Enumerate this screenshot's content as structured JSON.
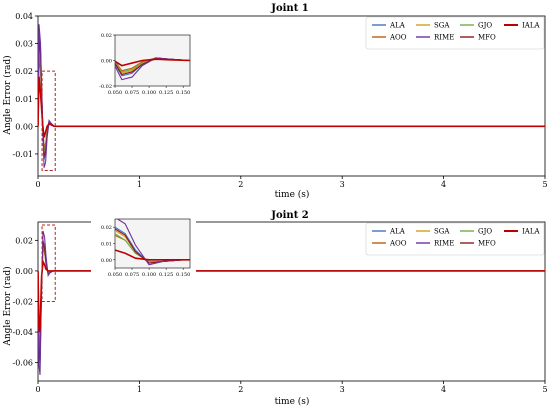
{
  "legend": [
    {
      "name": "ALA",
      "color": "#4472c4"
    },
    {
      "name": "SGA",
      "color": "#d4a017"
    },
    {
      "name": "GJO",
      "color": "#70ad47"
    },
    {
      "name": "IALA",
      "color": "#c00000"
    },
    {
      "name": "AOO",
      "color": "#c55a11"
    },
    {
      "name": "RIME",
      "color": "#7030a0"
    },
    {
      "name": "MFO",
      "color": "#8b1a1a"
    }
  ],
  "chart_data": [
    {
      "type": "line",
      "title": "Joint 1",
      "xlabel": "time (s)",
      "ylabel": "Angle Error (rad)",
      "xlim": [
        0,
        5
      ],
      "ylim": [
        -0.018,
        0.04
      ],
      "xticks": [
        0,
        1,
        2,
        3,
        4,
        5
      ],
      "yticks": [
        -0.01,
        0.0,
        0.01,
        0.02,
        0.03,
        0.04
      ],
      "ytick_labels": [
        "-0.01",
        "0.00",
        "0.01",
        "0.02",
        "0.03",
        "0.04"
      ],
      "grid": false,
      "legend_position": "top-right",
      "series": [
        {
          "name": "ALA",
          "x": [
            0,
            0.01,
            0.025,
            0.045,
            0.06,
            0.075,
            0.09,
            0.11,
            0.13,
            0.16,
            0.5,
            5
          ],
          "y": [
            0,
            0.034,
            0.028,
            0.002,
            -0.012,
            -0.01,
            -0.003,
            0.002,
            0.001,
            0,
            0,
            0
          ]
        },
        {
          "name": "SGA",
          "x": [
            0,
            0.01,
            0.025,
            0.045,
            0.06,
            0.075,
            0.09,
            0.11,
            0.13,
            0.16,
            0.5,
            5
          ],
          "y": [
            0,
            0.03,
            0.024,
            0.003,
            -0.01,
            -0.008,
            -0.002,
            0.002,
            0.001,
            0,
            0,
            0
          ]
        },
        {
          "name": "GJO",
          "x": [
            0,
            0.01,
            0.025,
            0.045,
            0.06,
            0.075,
            0.09,
            0.11,
            0.13,
            0.16,
            0.5,
            5
          ],
          "y": [
            0,
            0.028,
            0.022,
            0.002,
            -0.009,
            -0.007,
            -0.002,
            0.001,
            0.001,
            0,
            0,
            0
          ]
        },
        {
          "name": "IALA",
          "x": [
            0,
            0.01,
            0.025,
            0.045,
            0.06,
            0.075,
            0.09,
            0.11,
            0.13,
            0.16,
            0.5,
            5
          ],
          "y": [
            0,
            0.018,
            0.012,
            0.001,
            -0.004,
            -0.002,
            0.0,
            0.001,
            0.0005,
            0,
            0,
            0
          ]
        },
        {
          "name": "AOO",
          "x": [
            0,
            0.01,
            0.025,
            0.045,
            0.06,
            0.075,
            0.09,
            0.11,
            0.13,
            0.16,
            0.5,
            5
          ],
          "y": [
            0,
            0.026,
            0.02,
            0.003,
            -0.008,
            -0.006,
            -0.001,
            0.002,
            0.001,
            0,
            0,
            0
          ]
        },
        {
          "name": "RIME",
          "x": [
            0,
            0.01,
            0.025,
            0.045,
            0.06,
            0.075,
            0.09,
            0.11,
            0.13,
            0.16,
            0.5,
            5
          ],
          "y": [
            0,
            0.037,
            0.03,
            0.001,
            -0.015,
            -0.013,
            -0.004,
            0.002,
            0.001,
            0,
            0,
            0
          ]
        },
        {
          "name": "MFO",
          "x": [
            0,
            0.01,
            0.025,
            0.045,
            0.06,
            0.075,
            0.09,
            0.11,
            0.13,
            0.16,
            0.5,
            5
          ],
          "y": [
            0,
            0.032,
            0.026,
            0.002,
            -0.011,
            -0.009,
            -0.003,
            0.002,
            0.001,
            0,
            0,
            0
          ]
        }
      ],
      "highlight_box": {
        "x": [
          0.04,
          0.17
        ],
        "y": [
          -0.016,
          0.02
        ]
      },
      "inset": {
        "xlim": [
          0.05,
          0.16
        ],
        "ylim": [
          -0.02,
          0.02
        ],
        "xticks": [
          0.05,
          0.075,
          0.1,
          0.125,
          0.15
        ],
        "xtick_labels": [
          "0.050",
          "0.075",
          "0.100",
          "0.125",
          "0.150"
        ],
        "yticks": [
          -0.02,
          0.0,
          0.02
        ],
        "ytick_labels": [
          "-0.02",
          "0.00",
          "0.02"
        ]
      }
    },
    {
      "type": "line",
      "title": "Joint 2",
      "xlabel": "time (s)",
      "ylabel": "Angle Error (rad)",
      "xlim": [
        0,
        5
      ],
      "ylim": [
        -0.072,
        0.032
      ],
      "xticks": [
        0,
        1,
        2,
        3,
        4,
        5
      ],
      "yticks": [
        -0.06,
        -0.04,
        -0.02,
        0.0,
        0.02
      ],
      "ytick_labels": [
        "-0.06",
        "-0.04",
        "-0.02",
        "0.00",
        "0.02"
      ],
      "grid": false,
      "legend_position": "top-right",
      "series": [
        {
          "name": "ALA",
          "x": [
            0,
            0.01,
            0.02,
            0.035,
            0.05,
            0.065,
            0.08,
            0.1,
            0.12,
            0.15,
            0.5,
            5
          ],
          "y": [
            0,
            -0.055,
            -0.06,
            -0.01,
            0.02,
            0.016,
            0.006,
            -0.002,
            -0.001,
            0,
            0,
            0
          ]
        },
        {
          "name": "SGA",
          "x": [
            0,
            0.01,
            0.02,
            0.035,
            0.05,
            0.065,
            0.08,
            0.1,
            0.12,
            0.15,
            0.5,
            5
          ],
          "y": [
            0,
            -0.05,
            -0.055,
            -0.008,
            0.018,
            0.014,
            0.005,
            -0.002,
            -0.001,
            0,
            0,
            0
          ]
        },
        {
          "name": "GJO",
          "x": [
            0,
            0.01,
            0.02,
            0.035,
            0.05,
            0.065,
            0.08,
            0.1,
            0.12,
            0.15,
            0.5,
            5
          ],
          "y": [
            0,
            -0.048,
            -0.052,
            -0.008,
            0.016,
            0.012,
            0.004,
            -0.001,
            -0.001,
            0,
            0,
            0
          ]
        },
        {
          "name": "IALA",
          "x": [
            0,
            0.01,
            0.02,
            0.035,
            0.05,
            0.065,
            0.08,
            0.1,
            0.12,
            0.15,
            0.5,
            5
          ],
          "y": [
            0,
            -0.04,
            -0.038,
            -0.004,
            0.006,
            0.004,
            0.001,
            0.0,
            0.0,
            0,
            0,
            0
          ]
        },
        {
          "name": "AOO",
          "x": [
            0,
            0.01,
            0.02,
            0.035,
            0.05,
            0.065,
            0.08,
            0.1,
            0.12,
            0.15,
            0.5,
            5
          ],
          "y": [
            0,
            -0.045,
            -0.05,
            -0.007,
            0.015,
            0.012,
            0.004,
            -0.001,
            -0.001,
            0,
            0,
            0
          ]
        },
        {
          "name": "RIME",
          "x": [
            0,
            0.01,
            0.02,
            0.035,
            0.05,
            0.065,
            0.08,
            0.1,
            0.12,
            0.15,
            0.5,
            5
          ],
          "y": [
            0,
            -0.062,
            -0.068,
            -0.012,
            0.026,
            0.022,
            0.009,
            -0.003,
            -0.001,
            0,
            0,
            0
          ]
        },
        {
          "name": "MFO",
          "x": [
            0,
            0.01,
            0.02,
            0.035,
            0.05,
            0.065,
            0.08,
            0.1,
            0.12,
            0.15,
            0.5,
            5
          ],
          "y": [
            0,
            -0.052,
            -0.058,
            -0.009,
            0.019,
            0.015,
            0.005,
            -0.002,
            -0.001,
            0,
            0,
            0
          ]
        }
      ],
      "highlight_box": {
        "x": [
          0.04,
          0.17
        ],
        "y": [
          -0.02,
          0.03
        ]
      },
      "inset": {
        "xlim": [
          0.05,
          0.16
        ],
        "ylim": [
          -0.005,
          0.025
        ],
        "xticks": [
          0.05,
          0.075,
          0.1,
          0.125,
          0.15
        ],
        "xtick_labels": [
          "0.050",
          "0.075",
          "0.100",
          "0.125",
          "0.150"
        ],
        "yticks": [
          0.0,
          0.01,
          0.02
        ],
        "ytick_labels": [
          "0.00",
          "0.01",
          "0.02"
        ]
      }
    }
  ]
}
